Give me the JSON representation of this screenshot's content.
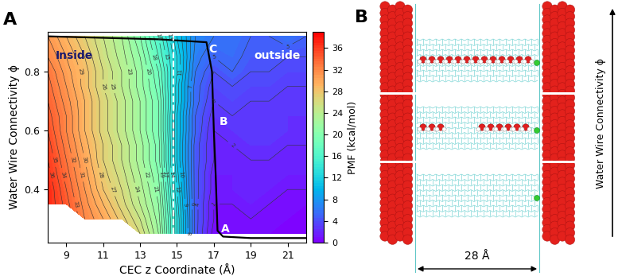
{
  "chart_data": {
    "type": "contour",
    "panel_label": "A",
    "xlabel": "CEC z Coordinate (Å)",
    "ylabel": "Water Wire Connectivity ϕ",
    "x": [
      8,
      9,
      10,
      11,
      12,
      13,
      14,
      15,
      16,
      17,
      18,
      19,
      20,
      21,
      22
    ],
    "y": [
      0.25,
      0.3,
      0.35,
      0.4,
      0.45,
      0.5,
      0.55,
      0.6,
      0.65,
      0.7,
      0.75,
      0.8,
      0.85,
      0.92
    ],
    "values": [
      [
        null,
        null,
        null,
        null,
        null,
        26,
        22,
        13,
        4.5,
        0.5,
        0.5,
        0.5,
        0.5,
        0.5,
        0.5
      ],
      [
        null,
        null,
        32,
        30,
        27.5,
        25,
        21.5,
        13,
        4.5,
        1,
        1,
        1,
        1,
        0.5,
        0.5
      ],
      [
        37,
        34.5,
        31.5,
        29,
        26.5,
        24,
        21,
        12.5,
        4.5,
        1,
        1,
        1.5,
        1,
        1,
        0.5
      ],
      [
        37,
        34,
        31,
        28,
        26,
        23.5,
        20.5,
        12,
        4.5,
        1.5,
        1.5,
        2,
        1.5,
        1,
        1
      ],
      [
        36.5,
        33.5,
        30.5,
        27.5,
        25.5,
        23,
        20,
        11.5,
        4.5,
        1.5,
        1.5,
        2,
        2,
        1.5,
        1.5
      ],
      [
        36,
        33,
        30,
        27,
        25,
        22.5,
        19.5,
        11,
        4.5,
        2,
        2,
        2,
        2,
        2,
        2
      ],
      [
        35.5,
        32.5,
        29.5,
        27,
        25,
        22.5,
        19.5,
        11,
        4.5,
        2,
        2,
        2.5,
        2.5,
        2,
        2
      ],
      [
        35,
        32,
        29,
        26.5,
        24.5,
        22,
        19,
        11,
        5,
        2,
        2.5,
        3,
        3,
        2.5,
        2.5
      ],
      [
        34.5,
        32,
        29,
        26.5,
        24.5,
        22,
        19,
        11,
        5,
        2.5,
        3,
        3,
        3,
        2.5,
        2.5
      ],
      [
        34,
        31.5,
        29,
        26.5,
        24.5,
        22,
        19,
        11.5,
        5.5,
        3,
        3.5,
        3,
        3,
        3,
        3
      ],
      [
        33.5,
        31,
        28.5,
        26,
        24,
        21.5,
        18.5,
        11.5,
        5.5,
        3.5,
        4,
        3.5,
        3.5,
        3,
        3
      ],
      [
        33,
        30.5,
        28.5,
        26,
        24,
        21.5,
        18,
        12,
        6,
        4,
        5,
        4,
        4,
        3.5,
        3.5
      ],
      [
        32,
        30,
        28,
        25.5,
        23.5,
        21,
        17,
        12,
        6.5,
        5,
        5.5,
        4.5,
        4.5,
        4,
        4
      ],
      [
        31,
        29,
        27,
        25,
        23,
        20,
        16,
        11,
        7,
        6,
        6,
        5,
        5,
        6,
        5
      ]
    ],
    "contour_levels": [
      1,
      2,
      3,
      4,
      5,
      6,
      7,
      8,
      9,
      10,
      11,
      12,
      13,
      14,
      15,
      16,
      17,
      18,
      19,
      20,
      21,
      22,
      23,
      24,
      25,
      26,
      27,
      28,
      29,
      30,
      31,
      32,
      33,
      34,
      35,
      36
    ],
    "colorbar": {
      "range": [
        0,
        39
      ],
      "ticks": [
        0,
        4,
        8,
        12,
        16,
        20,
        24,
        28,
        32,
        36
      ],
      "label": "PMF (kcal/mol)"
    },
    "xlim": [
      8,
      22
    ],
    "ylim": [
      0.22,
      0.935
    ],
    "xticks": [
      9,
      11,
      13,
      15,
      17,
      19,
      21
    ],
    "yticks": [
      0.4,
      0.6,
      0.8
    ],
    "path": {
      "x": [
        22,
        19,
        17.5,
        17.2,
        17.1,
        17.0,
        16.9,
        16.6,
        14,
        11,
        8
      ],
      "y": [
        0.235,
        0.235,
        0.24,
        0.26,
        0.45,
        0.6,
        0.8,
        0.9,
        0.91,
        0.915,
        0.92
      ]
    },
    "divider_x": 14.8,
    "annotations": [
      {
        "text": "Inside",
        "x": 8.4,
        "y": 0.855,
        "color": "#1a1a6e"
      },
      {
        "text": "outside",
        "x": 19.2,
        "y": 0.855,
        "color": "#ffffff"
      },
      {
        "text": "A",
        "x": 17.4,
        "y": 0.265,
        "color": "#ffffff"
      },
      {
        "text": "B",
        "x": 17.3,
        "y": 0.63,
        "color": "#ffffff"
      },
      {
        "text": "C",
        "x": 16.7,
        "y": 0.875,
        "color": "#ffffff"
      }
    ]
  },
  "diagram": {
    "panel_label": "B",
    "axis_label": "Water Wire Connectivity ϕ",
    "width_label": "28 Å"
  }
}
